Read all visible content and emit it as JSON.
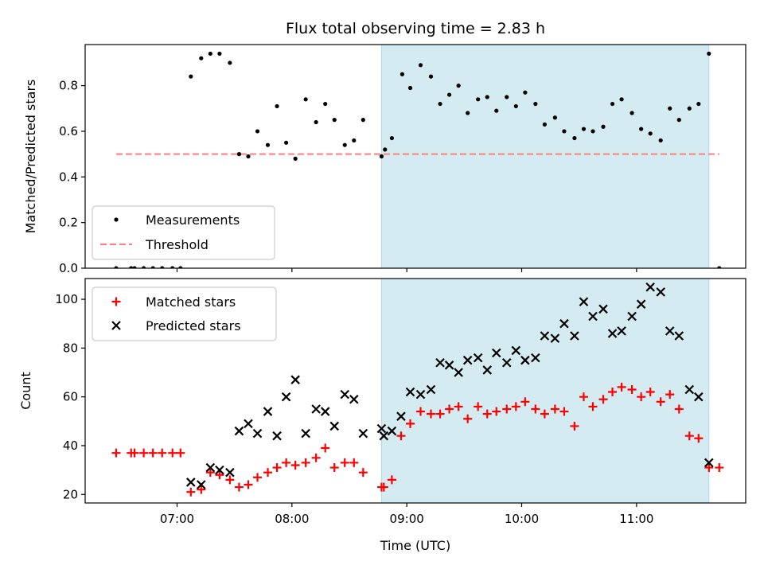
{
  "chart_data": [
    {
      "type": "scatter",
      "title": "Flux total observing time = 2.83 h",
      "xlabel": "",
      "ylabel": "Matched/Predicted stars",
      "ylim": [
        0,
        0.98
      ],
      "yticks": [
        "0.0",
        "0.2",
        "0.4",
        "0.6",
        "0.8"
      ],
      "xlim_hours": [
        6.2,
        11.95
      ],
      "grid": false,
      "legend": {
        "position": "lower-left",
        "entries": [
          "Measurements",
          "Threshold"
        ]
      },
      "shaded_region_hours": [
        8.78,
        11.63
      ],
      "threshold": {
        "name": "Threshold",
        "value": 0.5,
        "x_start_hours": 6.47,
        "x_end_hours": 11.72
      },
      "series": [
        {
          "name": "Measurements",
          "x_hours": [
            6.47,
            6.6,
            6.63,
            6.71,
            6.79,
            6.87,
            6.96,
            7.03,
            7.12,
            7.21,
            7.29,
            7.37,
            7.46,
            7.54,
            7.62,
            7.7,
            7.79,
            7.87,
            7.95,
            8.03,
            8.12,
            8.21,
            8.29,
            8.37,
            8.46,
            8.54,
            8.62,
            8.78,
            8.81,
            8.87,
            8.96,
            9.03,
            9.12,
            9.21,
            9.29,
            9.37,
            9.45,
            9.53,
            9.62,
            9.7,
            9.78,
            9.87,
            9.95,
            10.03,
            10.12,
            10.2,
            10.29,
            10.37,
            10.46,
            10.54,
            10.62,
            10.71,
            10.79,
            10.87,
            10.96,
            11.04,
            11.12,
            11.21,
            11.29,
            11.37,
            11.46,
            11.54,
            11.63,
            11.72
          ],
          "y": [
            0.0,
            0.0,
            0.0,
            0.0,
            0.0,
            0.0,
            0.0,
            0.0,
            0.84,
            0.92,
            0.94,
            0.94,
            0.9,
            0.5,
            0.49,
            0.6,
            0.54,
            0.71,
            0.55,
            0.48,
            0.74,
            0.64,
            0.72,
            0.65,
            0.54,
            0.56,
            0.65,
            0.49,
            0.52,
            0.57,
            0.85,
            0.79,
            0.89,
            0.84,
            0.72,
            0.76,
            0.8,
            0.68,
            0.74,
            0.75,
            0.69,
            0.75,
            0.71,
            0.77,
            0.72,
            0.63,
            0.66,
            0.6,
            0.57,
            0.61,
            0.6,
            0.62,
            0.72,
            0.74,
            0.68,
            0.61,
            0.59,
            0.56,
            0.7,
            0.65,
            0.7,
            0.72,
            0.94,
            0.0
          ]
        }
      ]
    },
    {
      "type": "scatter",
      "title": "",
      "xlabel": "Time (UTC)",
      "ylabel": "Count",
      "ylim": [
        16.5,
        108.5
      ],
      "yticks": [
        "20",
        "40",
        "60",
        "80",
        "100"
      ],
      "xlim_hours": [
        6.2,
        11.95
      ],
      "xticks": [
        {
          "hour": 7,
          "label": "07:00"
        },
        {
          "hour": 8,
          "label": "08:00"
        },
        {
          "hour": 9,
          "label": "09:00"
        },
        {
          "hour": 10,
          "label": "10:00"
        },
        {
          "hour": 11,
          "label": "11:00"
        }
      ],
      "grid": false,
      "legend": {
        "position": "upper-left",
        "entries": [
          "Matched stars",
          "Predicted stars"
        ]
      },
      "shaded_region_hours": [
        8.78,
        11.63
      ],
      "series": [
        {
          "name": "Matched stars",
          "x_hours": [
            6.47,
            6.6,
            6.63,
            6.71,
            6.79,
            6.87,
            6.96,
            7.03,
            7.12,
            7.21,
            7.29,
            7.37,
            7.46,
            7.54,
            7.62,
            7.7,
            7.79,
            7.87,
            7.95,
            8.03,
            8.12,
            8.21,
            8.29,
            8.37,
            8.46,
            8.54,
            8.62,
            8.78,
            8.8,
            8.87,
            8.95,
            9.03,
            9.12,
            9.21,
            9.29,
            9.37,
            9.45,
            9.53,
            9.62,
            9.7,
            9.78,
            9.87,
            9.95,
            10.03,
            10.12,
            10.2,
            10.29,
            10.37,
            10.46,
            10.54,
            10.62,
            10.71,
            10.79,
            10.87,
            10.96,
            11.04,
            11.12,
            11.21,
            11.29,
            11.37,
            11.46,
            11.54,
            11.63,
            11.72
          ],
          "y": [
            37,
            37,
            37,
            37,
            37,
            37,
            37,
            37,
            21,
            22,
            29,
            28,
            26,
            23,
            24,
            27,
            29,
            31,
            33,
            32,
            33,
            35,
            39,
            31,
            33,
            33,
            29,
            23,
            23,
            26,
            44,
            49,
            54,
            53,
            53,
            55,
            56,
            51,
            56,
            53,
            54,
            55,
            56,
            58,
            55,
            53,
            55,
            54,
            48,
            60,
            56,
            59,
            62,
            64,
            63,
            60,
            62,
            58,
            61,
            55,
            44,
            43,
            31,
            31
          ]
        },
        {
          "name": "Predicted stars",
          "x_hours": [
            7.12,
            7.21,
            7.29,
            7.37,
            7.46,
            7.54,
            7.62,
            7.7,
            7.79,
            7.87,
            7.95,
            8.03,
            8.12,
            8.21,
            8.29,
            8.37,
            8.46,
            8.54,
            8.62,
            8.78,
            8.8,
            8.87,
            8.95,
            9.03,
            9.12,
            9.21,
            9.29,
            9.37,
            9.45,
            9.53,
            9.62,
            9.7,
            9.78,
            9.87,
            9.95,
            10.03,
            10.12,
            10.2,
            10.29,
            10.37,
            10.46,
            10.54,
            10.62,
            10.71,
            10.79,
            10.87,
            10.96,
            11.04,
            11.12,
            11.21,
            11.29,
            11.37,
            11.46,
            11.54,
            11.63
          ],
          "y": [
            25,
            24,
            31,
            30,
            29,
            46,
            49,
            45,
            54,
            44,
            60,
            67,
            45,
            55,
            54,
            48,
            61,
            59,
            45,
            47,
            44,
            46,
            52,
            62,
            61,
            63,
            74,
            73,
            70,
            75,
            76,
            71,
            78,
            74,
            79,
            75,
            76,
            85,
            84,
            90,
            85,
            99,
            93,
            96,
            86,
            87,
            93,
            98,
            105,
            103,
            87,
            85,
            63,
            60,
            33
          ]
        }
      ]
    }
  ],
  "colors": {
    "shade": "#add8e6",
    "threshold": "#ff7f7f",
    "measurements": "#000000",
    "matched": "#ff0000",
    "predicted": "#000000"
  }
}
